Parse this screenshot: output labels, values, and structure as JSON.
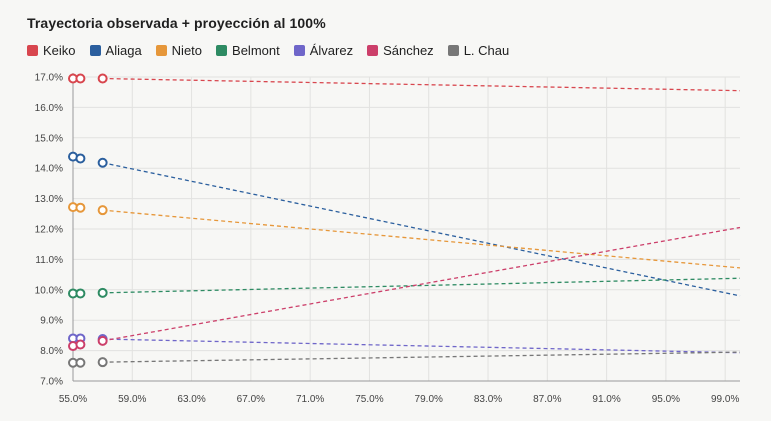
{
  "title": "Trayectoria observada + proyección al 100%",
  "chart_data": {
    "type": "line",
    "title": "Trayectoria observada + proyección al 100%",
    "xlabel": "",
    "ylabel": "",
    "xlim": [
      55.0,
      100.0
    ],
    "ylim": [
      7.0,
      17.0
    ],
    "x_ticks": [
      "55.0%",
      "59.0%",
      "63.0%",
      "67.0%",
      "71.0%",
      "75.0%",
      "79.0%",
      "83.0%",
      "87.0%",
      "91.0%",
      "95.0%",
      "99.0%"
    ],
    "y_ticks": [
      "7.0%",
      "8.0%",
      "9.0%",
      "10.0%",
      "11.0%",
      "12.0%",
      "13.0%",
      "14.0%",
      "15.0%",
      "16.0%",
      "17.0%"
    ],
    "grid": true,
    "legend_position": "top-left",
    "series": [
      {
        "name": "Keiko",
        "color": "#d8464e",
        "observed": [
          [
            55.0,
            16.95
          ],
          [
            55.5,
            16.95
          ],
          [
            57.0,
            16.95
          ]
        ],
        "projection": [
          [
            57.0,
            16.95
          ],
          [
            100.0,
            16.55
          ]
        ]
      },
      {
        "name": "Aliaga",
        "color": "#2b5f9e",
        "observed": [
          [
            55.0,
            14.38
          ],
          [
            55.5,
            14.32
          ],
          [
            57.0,
            14.18
          ]
        ],
        "projection": [
          [
            57.0,
            14.18
          ],
          [
            100.0,
            9.8
          ]
        ]
      },
      {
        "name": "Nieto",
        "color": "#e6973a",
        "observed": [
          [
            55.0,
            12.72
          ],
          [
            55.5,
            12.7
          ],
          [
            57.0,
            12.62
          ]
        ],
        "projection": [
          [
            57.0,
            12.62
          ],
          [
            100.0,
            10.72
          ]
        ]
      },
      {
        "name": "Belmont",
        "color": "#2e8b63",
        "observed": [
          [
            55.0,
            9.88
          ],
          [
            55.5,
            9.88
          ],
          [
            57.0,
            9.9
          ]
        ],
        "projection": [
          [
            57.0,
            9.9
          ],
          [
            100.0,
            10.38
          ]
        ]
      },
      {
        "name": "Álvarez",
        "color": "#6f66c9",
        "observed": [
          [
            55.0,
            8.4
          ],
          [
            55.5,
            8.4
          ],
          [
            57.0,
            8.38
          ]
        ],
        "projection": [
          [
            57.0,
            8.38
          ],
          [
            100.0,
            7.93
          ]
        ]
      },
      {
        "name": "Sánchez",
        "color": "#cc3f6a",
        "observed": [
          [
            55.0,
            8.15
          ],
          [
            55.5,
            8.2
          ],
          [
            57.0,
            8.32
          ]
        ],
        "projection": [
          [
            57.0,
            8.32
          ],
          [
            100.0,
            12.05
          ]
        ]
      },
      {
        "name": "L. Chau",
        "color": "#777777",
        "observed": [
          [
            55.0,
            7.6
          ],
          [
            55.5,
            7.6
          ],
          [
            57.0,
            7.62
          ]
        ],
        "projection": [
          [
            57.0,
            7.62
          ],
          [
            100.0,
            7.95
          ]
        ]
      }
    ]
  }
}
